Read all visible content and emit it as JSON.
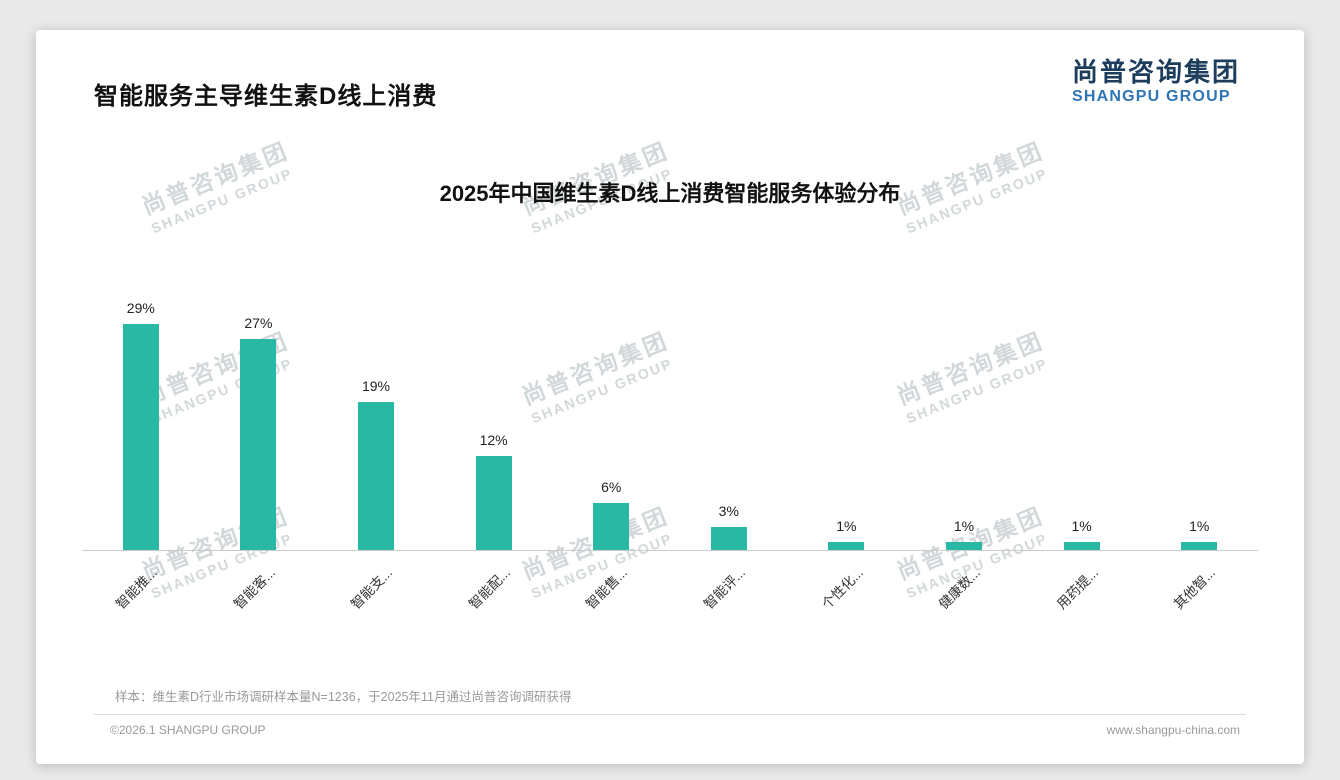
{
  "page": {
    "title": "智能服务主导维生素D线上消费",
    "note": "样本：维生素D行业市场调研样本量N=1236，于2025年11月通过尚普咨询调研获得",
    "footer_left": "©2026.1 SHANGPU GROUP",
    "footer_right": "www.shangpu-china.com",
    "watermark_cn": "尚普咨询集团",
    "watermark_en": "SHANGPU GROUP"
  },
  "brand": {
    "cn": "尚普咨询集团",
    "en": "SHANGPU GROUP",
    "cn_color": "#1d3d5c",
    "en_color": "#2e75b6"
  },
  "chart_data": {
    "type": "bar",
    "title": "2025年中国维生素D线上消费智能服务体验分布",
    "categories": [
      "智能推...",
      "智能客...",
      "智能支...",
      "智能配...",
      "智能售...",
      "智能评...",
      "个性化...",
      "健康数...",
      "用药提...",
      "其他智..."
    ],
    "values": [
      29,
      27,
      19,
      12,
      6,
      3,
      1,
      1,
      1,
      1
    ],
    "data_labels": [
      "29%",
      "27%",
      "19%",
      "12%",
      "6%",
      "3%",
      "1%",
      "1%",
      "1%",
      "1%"
    ],
    "unit": "%",
    "ylim": [
      0,
      30
    ],
    "grid": false,
    "legend": "none",
    "bar_color": "#29b8a3",
    "axis_line_color": "#cccccc"
  }
}
